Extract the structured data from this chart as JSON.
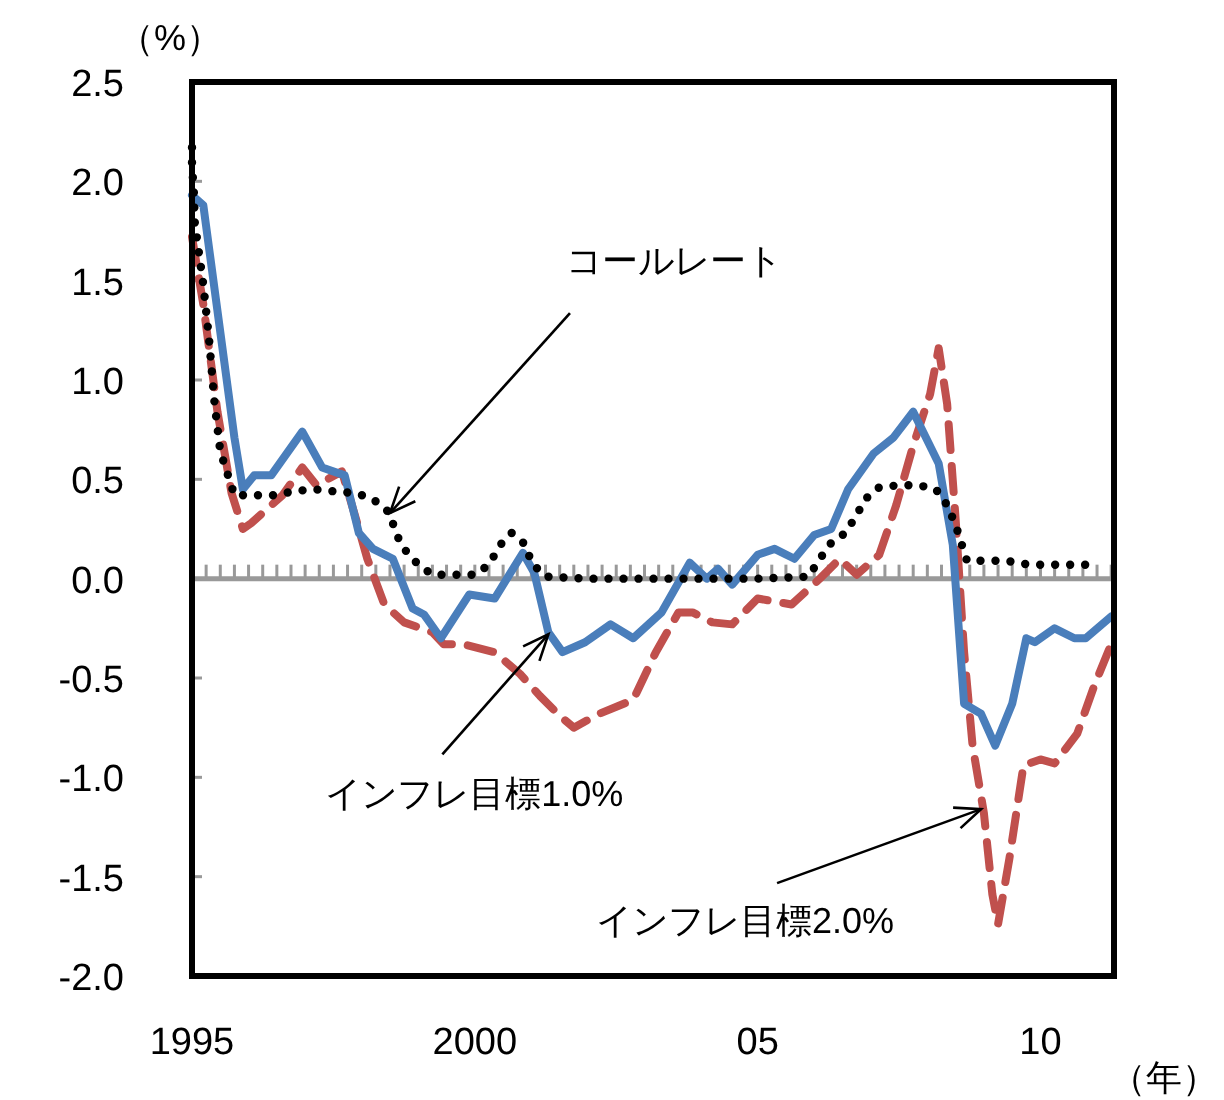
{
  "chart_data": {
    "type": "line",
    "xlabel": "（年）",
    "ylabel": "（%）",
    "xlim": [
      1995,
      2011.3
    ],
    "ylim": [
      -2.0,
      2.5
    ],
    "xticks": [
      {
        "value": 1995,
        "label": "1995"
      },
      {
        "value": 2000,
        "label": "2000"
      },
      {
        "value": 2005,
        "label": "05"
      },
      {
        "value": 2010,
        "label": "10"
      }
    ],
    "yticks": [
      {
        "value": -2.0,
        "label": "-2.0"
      },
      {
        "value": -1.5,
        "label": "-1.5"
      },
      {
        "value": -1.0,
        "label": "-1.0"
      },
      {
        "value": -0.5,
        "label": "-0.5"
      },
      {
        "value": 0.0,
        "label": "0.0"
      },
      {
        "value": 0.5,
        "label": "0.5"
      },
      {
        "value": 1.0,
        "label": "1.0"
      },
      {
        "value": 1.5,
        "label": "1.5"
      },
      {
        "value": 2.0,
        "label": "2.0"
      },
      {
        "value": 2.5,
        "label": "2.5"
      }
    ],
    "ref_lines": [
      {
        "axis": "y",
        "value": 0,
        "color": "#999999"
      }
    ],
    "marker": "none",
    "series": [
      {
        "color": "#c0504d",
        "line_style": "dashed",
        "x": [
          1995.0,
          1995.2,
          1995.45,
          1995.7,
          1995.9,
          1996.05,
          1996.6,
          1996.95,
          1997.2,
          1997.65,
          1997.9,
          1998.1,
          1998.4,
          1998.75,
          1999.25,
          1999.45,
          1999.8,
          2000.35,
          2000.8,
          2001.15,
          2001.5,
          2001.75,
          2002.2,
          2002.8,
          2003.2,
          2003.6,
          2003.85,
          2004.2,
          2004.55,
          2005.0,
          2005.6,
          2006.1,
          2006.45,
          2006.75,
          2007.15,
          2007.45,
          2007.75,
          2008.05,
          2008.2,
          2008.35,
          2008.5,
          2008.65,
          2008.8,
          2009.0,
          2009.15,
          2009.25,
          2009.45,
          2009.7,
          2010.0,
          2010.25,
          2010.65,
          2010.95,
          2011.25
        ],
        "values": [
          1.72,
          1.38,
          0.84,
          0.43,
          0.25,
          0.28,
          0.42,
          0.56,
          0.47,
          0.54,
          0.3,
          0.1,
          -0.13,
          -0.22,
          -0.27,
          -0.33,
          -0.33,
          -0.37,
          -0.48,
          -0.59,
          -0.69,
          -0.75,
          -0.68,
          -0.61,
          -0.37,
          -0.17,
          -0.17,
          -0.22,
          -0.23,
          -0.1,
          -0.13,
          0.0,
          0.1,
          0.02,
          0.12,
          0.37,
          0.67,
          0.93,
          1.16,
          0.88,
          0.3,
          -0.37,
          -0.84,
          -1.18,
          -1.59,
          -1.74,
          -1.41,
          -0.94,
          -0.91,
          -0.93,
          -0.78,
          -0.54,
          -0.33
        ]
      },
      {
        "color": "#4a7ebb",
        "line_style": "solid",
        "x": [
          1995.0,
          1995.2,
          1995.75,
          1995.9,
          1996.1,
          1996.4,
          1996.95,
          1997.3,
          1997.7,
          1997.95,
          1998.2,
          1998.55,
          1998.9,
          1999.1,
          1999.4,
          1999.9,
          2000.35,
          2000.85,
          2001.05,
          2001.3,
          2001.55,
          2001.95,
          2002.4,
          2002.8,
          2003.3,
          2003.8,
          2004.1,
          2004.3,
          2004.55,
          2005.0,
          2005.3,
          2005.65,
          2006.0,
          2006.3,
          2006.6,
          2007.05,
          2007.4,
          2007.75,
          2008.2,
          2008.45,
          2008.65,
          2008.95,
          2009.2,
          2009.5,
          2009.75,
          2009.9,
          2010.25,
          2010.6,
          2010.8,
          2011.25
        ],
        "values": [
          1.93,
          1.88,
          0.71,
          0.45,
          0.52,
          0.52,
          0.74,
          0.56,
          0.52,
          0.23,
          0.15,
          0.1,
          -0.15,
          -0.18,
          -0.3,
          -0.08,
          -0.1,
          0.13,
          0.03,
          -0.27,
          -0.37,
          -0.32,
          -0.23,
          -0.3,
          -0.17,
          0.08,
          0.0,
          0.05,
          -0.03,
          0.12,
          0.15,
          0.1,
          0.22,
          0.25,
          0.45,
          0.63,
          0.71,
          0.84,
          0.58,
          0.17,
          -0.63,
          -0.68,
          -0.84,
          -0.63,
          -0.3,
          -0.32,
          -0.25,
          -0.3,
          -0.3,
          -0.19
        ]
      },
      {
        "color": "#000000",
        "line_style": "dotted",
        "x": [
          1995.0,
          1995.0,
          1995.03,
          1995.05,
          1995.2,
          1995.3,
          1995.4,
          1995.5,
          1995.75,
          1996.1,
          1996.45,
          1996.8,
          1997.15,
          1997.5,
          1997.9,
          1998.2,
          1998.5,
          1998.6,
          1998.75,
          1999.0,
          1999.25,
          1999.6,
          2000.0,
          2000.25,
          2000.45,
          2000.65,
          2000.9,
          2001.0,
          2001.25,
          2002.0,
          2003.0,
          2004.0,
          2005.0,
          2005.9,
          2006.1,
          2006.3,
          2006.55,
          2006.75,
          2006.9,
          2007.15,
          2007.5,
          2007.85,
          2008.15,
          2008.35,
          2008.5,
          2008.6,
          2008.7,
          2009.05,
          2009.4,
          2009.8,
          2010.2,
          2010.55,
          2010.9
        ],
        "values": [
          2.17,
          2.07,
          1.97,
          1.79,
          1.48,
          1.21,
          0.88,
          0.64,
          0.42,
          0.42,
          0.42,
          0.44,
          0.45,
          0.44,
          0.43,
          0.4,
          0.33,
          0.23,
          0.15,
          0.07,
          0.02,
          0.02,
          0.02,
          0.07,
          0.17,
          0.23,
          0.17,
          0.08,
          0.01,
          0.0,
          0.0,
          0.0,
          0.0,
          0.01,
          0.1,
          0.18,
          0.23,
          0.32,
          0.4,
          0.46,
          0.47,
          0.47,
          0.45,
          0.37,
          0.27,
          0.18,
          0.09,
          0.09,
          0.09,
          0.07,
          0.07,
          0.07,
          0.07
        ]
      }
    ],
    "annotations": [
      {
        "text": "コールレート",
        "x": 1998.5,
        "y": 0.33
      },
      {
        "text": "インフレ目標1.0%",
        "x": 2001.3,
        "y": -0.28
      },
      {
        "text": "インフレ目標2.0%",
        "x": 2008.95,
        "y": -1.16
      }
    ]
  }
}
